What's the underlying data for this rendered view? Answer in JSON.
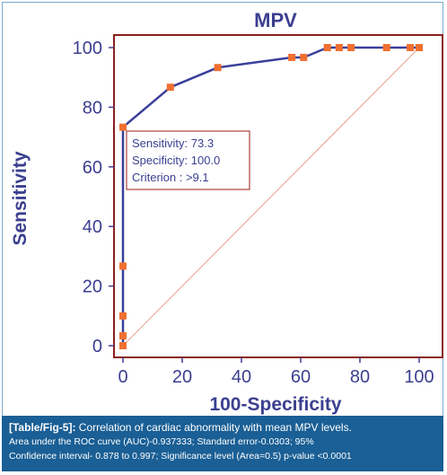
{
  "chart_data": {
    "type": "line",
    "title": "MPV",
    "xlabel": "100-Specificity",
    "ylabel": "Sensitivity",
    "xlim": [
      0,
      100
    ],
    "ylim": [
      0,
      100
    ],
    "x_ticks": [
      "0",
      "20",
      "40",
      "60",
      "80",
      "100"
    ],
    "y_ticks": [
      "0",
      "20",
      "40",
      "60",
      "80",
      "100"
    ],
    "series": [
      {
        "x": [
          0,
          0,
          0,
          0,
          0,
          16,
          32,
          57,
          61,
          69,
          73,
          77,
          89,
          97,
          100
        ],
        "y": [
          0,
          3.3,
          10,
          26.7,
          73.3,
          86.7,
          93.3,
          96.7,
          96.7,
          100,
          100,
          100,
          100,
          100,
          100
        ],
        "color": "#3a3f9a",
        "marker_color": "#f07030"
      }
    ],
    "reference_line": {
      "x": [
        0,
        100
      ],
      "y": [
        0,
        100
      ],
      "color": "#e8a090"
    },
    "annotation": {
      "lines": [
        "Sensitivity: 73.3",
        "Specificity: 100.0",
        "Criterion : >9.1"
      ],
      "border_color": "#b04040"
    },
    "grid": false
  },
  "caption": {
    "tag": "[Table/Fig-5]:",
    "text": "Correlation of cardiac abnormality with mean MPV levels.",
    "line2": "Area under the ROC curve (AUC)-0.937333; Standard error-0.0303; 95%",
    "line3": "Confidence interval- 0.878 to 0.997; Significance level (Area=0.5) p-value <0.0001"
  },
  "colors": {
    "axis_text": "#3b3f8f",
    "frame": "#8a2020",
    "caption_bg": "#1a5f95"
  }
}
